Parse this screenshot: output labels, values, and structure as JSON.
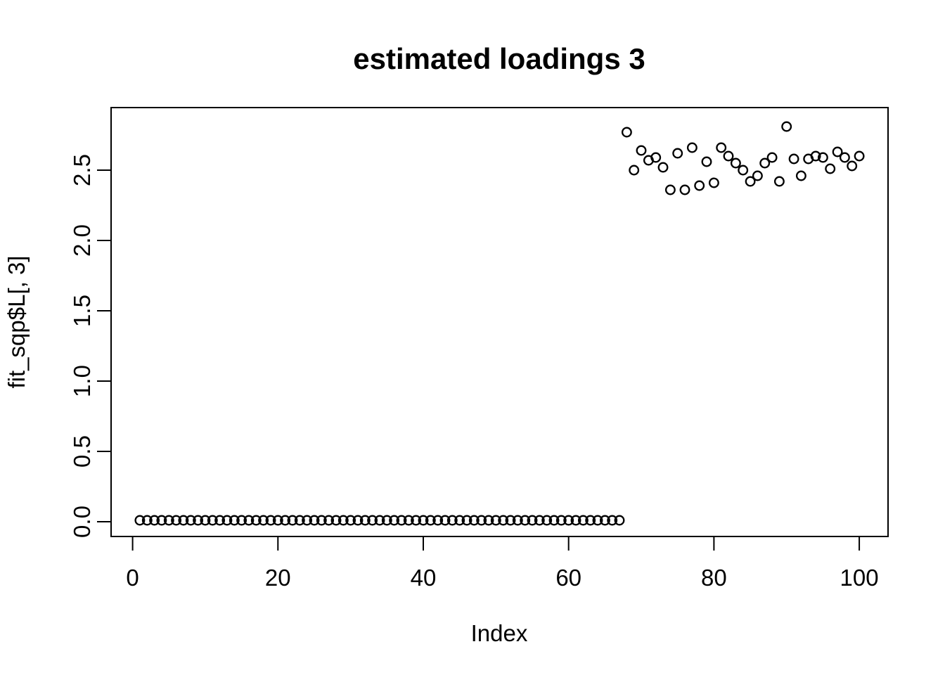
{
  "figure": {
    "background_color": "#ffffff",
    "foreground_color": "#000000"
  },
  "chart_data": {
    "type": "scatter",
    "title": "estimated loadings 3",
    "xlabel": "Index",
    "ylabel": "fit_sqp$L[, 3]",
    "marker": "open-circle",
    "marker_color": "#000000",
    "grid": false,
    "legend": "none",
    "xlim": [
      -2.96,
      103.96
    ],
    "ylim": [
      -0.105,
      2.945
    ],
    "x_ticks": [
      0,
      20,
      40,
      60,
      80,
      100
    ],
    "x_tick_labels": [
      "0",
      "20",
      "40",
      "60",
      "80",
      "100"
    ],
    "y_ticks": [
      0.0,
      0.5,
      1.0,
      1.5,
      2.0,
      2.5
    ],
    "y_tick_labels": [
      "0.0",
      "0.5",
      "1.0",
      "1.5",
      "2.0",
      "2.5"
    ],
    "x": [
      1,
      2,
      3,
      4,
      5,
      6,
      7,
      8,
      9,
      10,
      11,
      12,
      13,
      14,
      15,
      16,
      17,
      18,
      19,
      20,
      21,
      22,
      23,
      24,
      25,
      26,
      27,
      28,
      29,
      30,
      31,
      32,
      33,
      34,
      35,
      36,
      37,
      38,
      39,
      40,
      41,
      42,
      43,
      44,
      45,
      46,
      47,
      48,
      49,
      50,
      51,
      52,
      53,
      54,
      55,
      56,
      57,
      58,
      59,
      60,
      61,
      62,
      63,
      64,
      65,
      66,
      67,
      68,
      69,
      70,
      71,
      72,
      73,
      74,
      75,
      76,
      77,
      78,
      79,
      80,
      81,
      82,
      83,
      84,
      85,
      86,
      87,
      88,
      89,
      90,
      91,
      92,
      93,
      94,
      95,
      96,
      97,
      98,
      99,
      100
    ],
    "y": [
      0.01,
      0.01,
      0.01,
      0.01,
      0.01,
      0.01,
      0.01,
      0.01,
      0.01,
      0.01,
      0.01,
      0.01,
      0.01,
      0.01,
      0.01,
      0.01,
      0.01,
      0.01,
      0.01,
      0.01,
      0.01,
      0.01,
      0.01,
      0.01,
      0.01,
      0.01,
      0.01,
      0.01,
      0.01,
      0.01,
      0.01,
      0.01,
      0.01,
      0.01,
      0.01,
      0.01,
      0.01,
      0.01,
      0.01,
      0.01,
      0.01,
      0.01,
      0.01,
      0.01,
      0.01,
      0.01,
      0.01,
      0.01,
      0.01,
      0.01,
      0.01,
      0.01,
      0.01,
      0.01,
      0.01,
      0.01,
      0.01,
      0.01,
      0.01,
      0.01,
      0.01,
      0.01,
      0.01,
      0.01,
      0.01,
      0.01,
      0.01,
      2.77,
      2.5,
      2.64,
      2.57,
      2.59,
      2.52,
      2.36,
      2.62,
      2.36,
      2.66,
      2.39,
      2.56,
      2.41,
      2.66,
      2.6,
      2.55,
      2.5,
      2.42,
      2.46,
      2.55,
      2.59,
      2.42,
      2.81,
      2.58,
      2.46,
      2.58,
      2.6,
      2.59,
      2.51,
      2.63,
      2.59,
      2.53,
      2.6
    ]
  }
}
